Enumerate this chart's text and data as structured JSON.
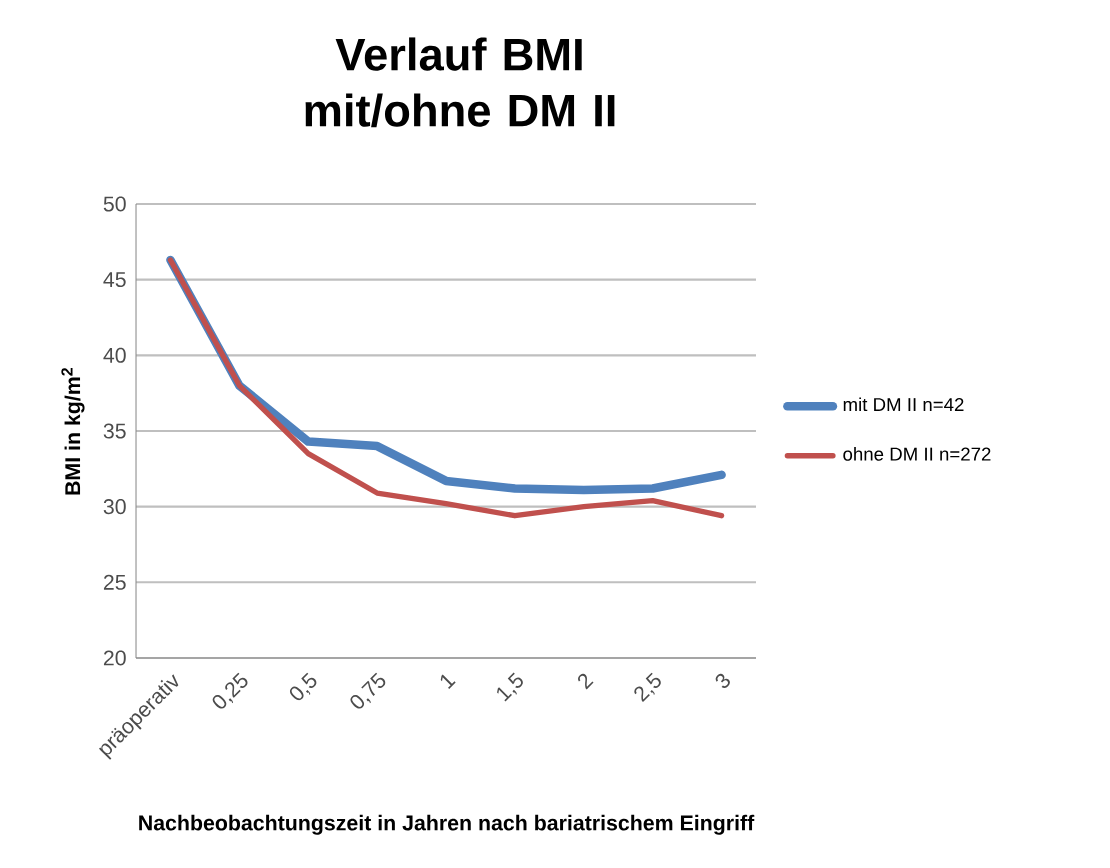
{
  "chart_data": {
    "type": "line",
    "title": "Verlauf BMI\nmit/ohne DM II",
    "xlabel": "Nachbeobachtungszeit in Jahren nach bariatrischem Eingriff",
    "ylabel": "BMI in kg/m$^{2}$",
    "categories": [
      "präoperativ",
      "0,25",
      "0,5",
      "0,75",
      "1",
      "1,5",
      "2",
      "2,5",
      "3"
    ],
    "series": [
      {
        "name": "mit DM II n=42",
        "color": "#4f81bd",
        "values": [
          46.3,
          38.0,
          34.3,
          34.0,
          31.7,
          31.2,
          31.1,
          31.2,
          32.1
        ]
      },
      {
        "name": "ohne DM II n=272",
        "color": "#c0504d",
        "values": [
          46.3,
          38.0,
          33.5,
          30.9,
          30.2,
          29.4,
          30.0,
          30.4,
          29.4
        ]
      }
    ],
    "ylim": [
      20,
      50
    ],
    "yticks": [
      20,
      25,
      30,
      35,
      40,
      45,
      50
    ],
    "grid": "y",
    "legend": "right",
    "marker": "none",
    "line_style": "solid"
  }
}
